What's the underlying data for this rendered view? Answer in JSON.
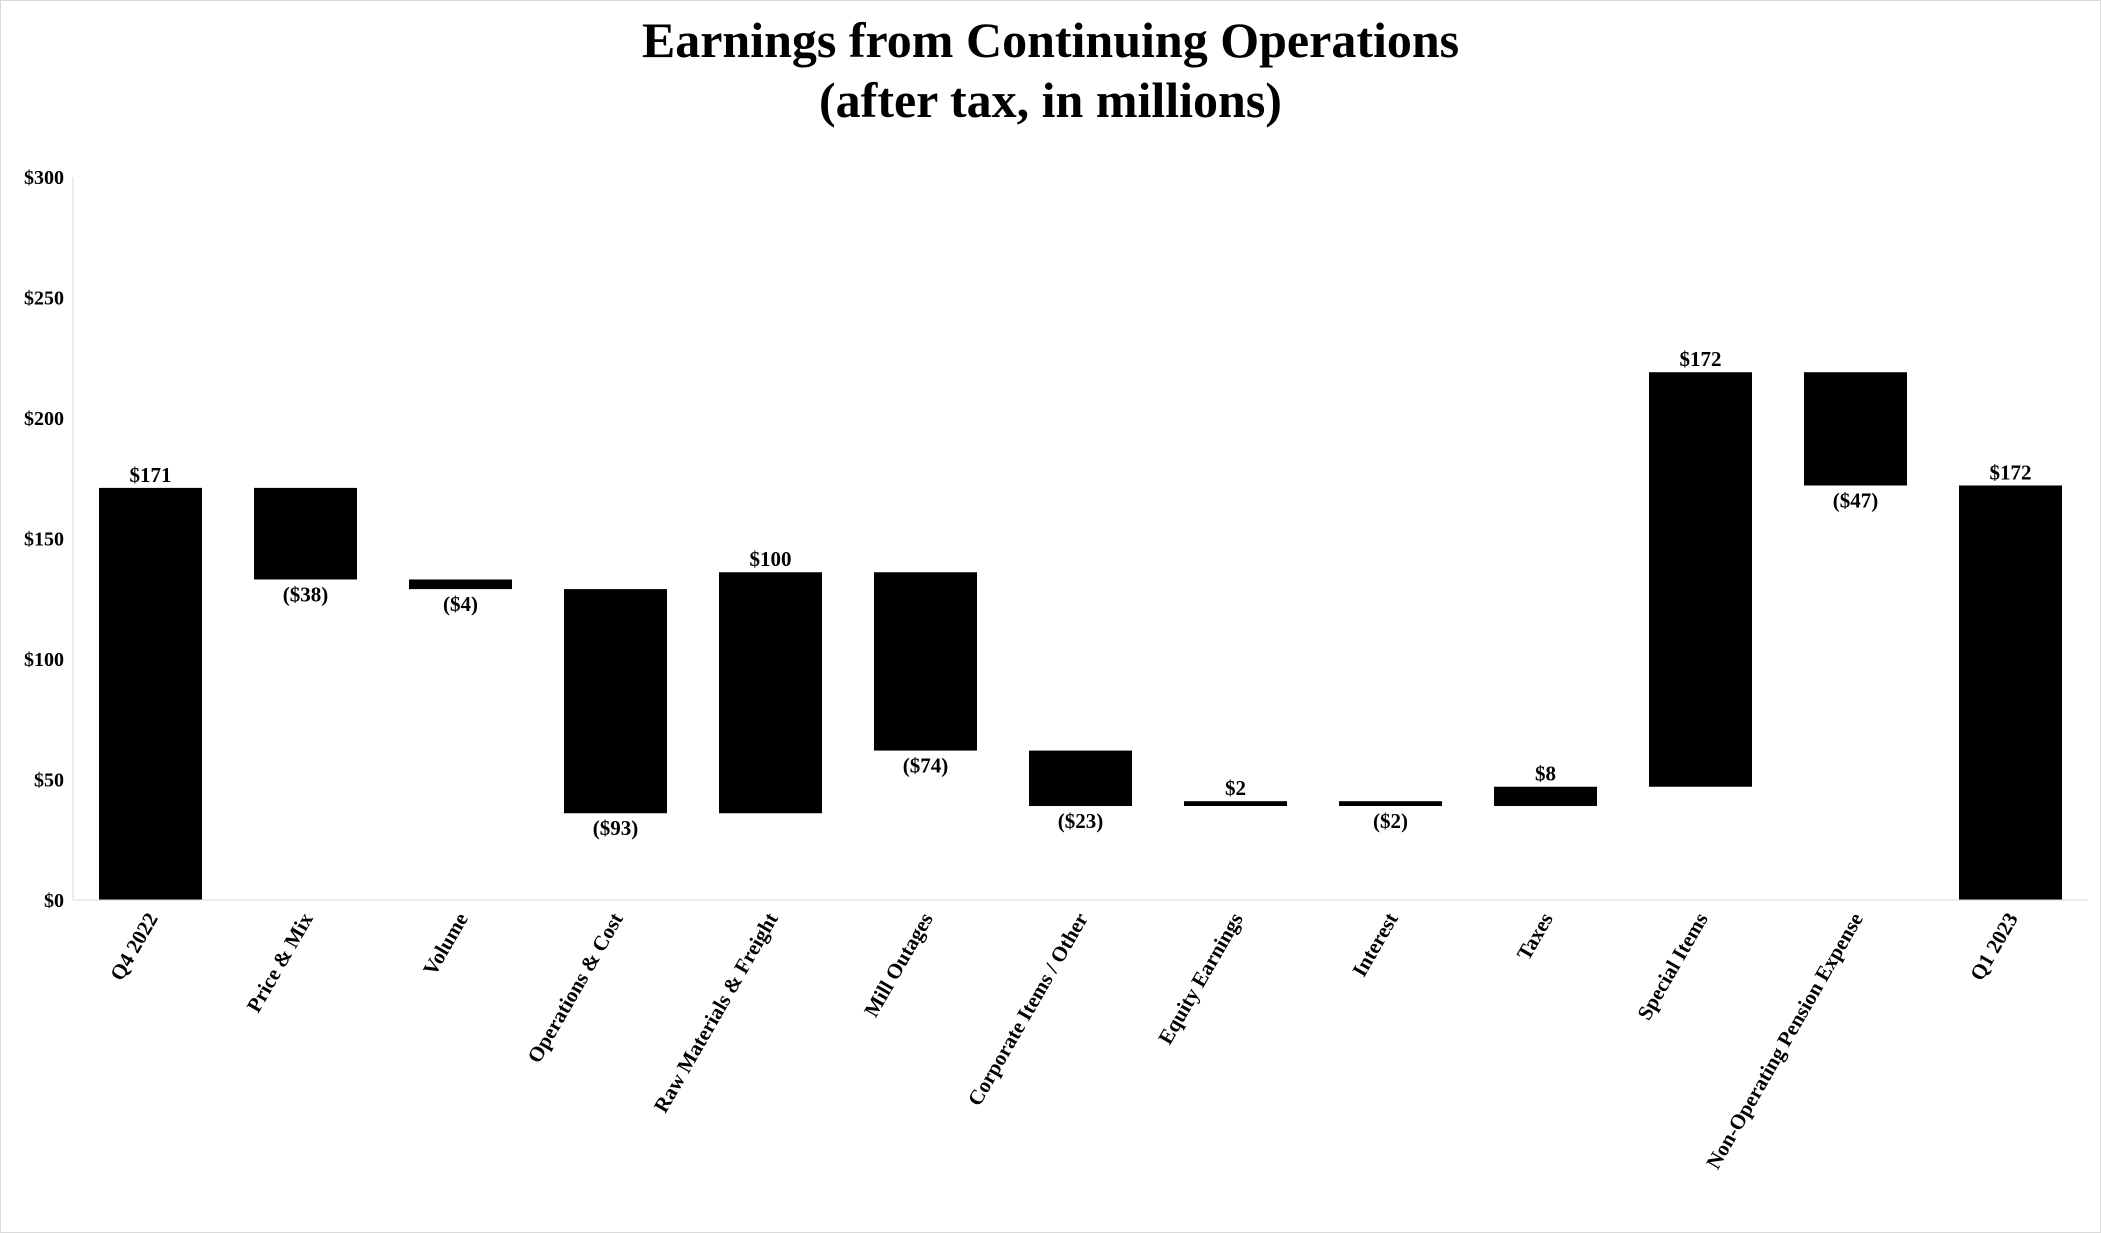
{
  "chart_data": {
    "type": "bar",
    "subtype": "waterfall",
    "title": "Earnings from Continuing Operations",
    "subtitle": "(after tax, in millions)",
    "xlabel": "",
    "ylabel": "",
    "ylim": [
      0,
      300
    ],
    "yticks": [
      0,
      50,
      100,
      150,
      200,
      250,
      300
    ],
    "ytick_labels": [
      "$0",
      "$50",
      "$100",
      "$150",
      "$200",
      "$250",
      "$300"
    ],
    "grid": false,
    "legend": "none",
    "bar_color": "#000000",
    "categories": [
      "Q4 2022",
      "Price & Mix",
      "Volume",
      "Operations & Cost",
      "Raw Materials & Freight",
      "Mill Outages",
      "Corporate Items / Other",
      "Equity Earnings",
      "Interest",
      "Taxes",
      "Special Items",
      "Non-Operating Pension Expense",
      "Q1 2023"
    ],
    "bars": [
      {
        "category": "Q4 2022",
        "start": 0,
        "end": 171,
        "label": "$171"
      },
      {
        "category": "Price & Mix",
        "start": 171,
        "end": 133,
        "label": "($38)"
      },
      {
        "category": "Volume",
        "start": 133,
        "end": 129,
        "label": "($4)"
      },
      {
        "category": "Operations & Cost",
        "start": 129,
        "end": 36,
        "label": "($93)"
      },
      {
        "category": "Raw Materials & Freight",
        "start": 36,
        "end": 136,
        "label": "$100"
      },
      {
        "category": "Mill Outages",
        "start": 136,
        "end": 62,
        "label": "($74)"
      },
      {
        "category": "Corporate Items / Other",
        "start": 62,
        "end": 39,
        "label": "($23)"
      },
      {
        "category": "Equity Earnings",
        "start": 39,
        "end": 41,
        "label": "$2"
      },
      {
        "category": "Interest",
        "start": 41,
        "end": 39,
        "label": "($2)"
      },
      {
        "category": "Taxes",
        "start": 39,
        "end": 47,
        "label": "$8"
      },
      {
        "category": "Special Items",
        "start": 47,
        "end": 219,
        "label": "$172"
      },
      {
        "category": "Non-Operating Pension Expense",
        "start": 219,
        "end": 172,
        "label": "($47)"
      },
      {
        "category": "Q1 2023",
        "start": 0,
        "end": 172,
        "label": "$172"
      }
    ]
  }
}
